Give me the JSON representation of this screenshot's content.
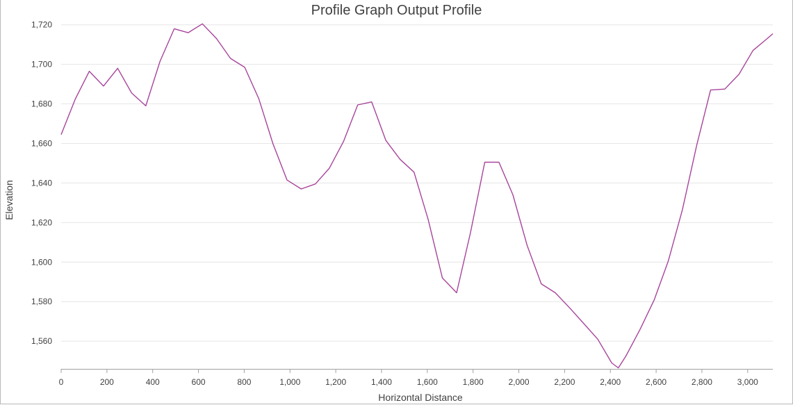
{
  "chart_data": {
    "type": "line",
    "title": "Profile Graph Output Profile",
    "xlabel": "Horizontal Distance",
    "ylabel": "Elevation",
    "xlim": [
      0,
      3110
    ],
    "ylim": [
      1546,
      1722
    ],
    "x_ticks": [
      0,
      200,
      400,
      600,
      800,
      1000,
      1200,
      1400,
      1600,
      1800,
      2000,
      2200,
      2400,
      2600,
      2800,
      3000
    ],
    "x_tick_labels": [
      "0",
      "200",
      "400",
      "600",
      "800",
      "1,000",
      "1,200",
      "1,400",
      "1,600",
      "1,800",
      "2,000",
      "2,200",
      "2,400",
      "2,600",
      "2,800",
      "3,000"
    ],
    "y_ticks": [
      1560,
      1580,
      1600,
      1620,
      1640,
      1660,
      1680,
      1700,
      1720
    ],
    "y_tick_labels": [
      "1,560",
      "1,580",
      "1,600",
      "1,620",
      "1,640",
      "1,660",
      "1,680",
      "1,700",
      "1,720"
    ],
    "grid": "horizontal",
    "line_color": "#a8449a",
    "series": [
      {
        "x": [
          0,
          62,
          123,
          185,
          247,
          308,
          370,
          432,
          494,
          555,
          617,
          679,
          740,
          802,
          864,
          925,
          987,
          1049,
          1111,
          1172,
          1234,
          1296,
          1357,
          1419,
          1481,
          1542,
          1604,
          1666,
          1728,
          1789,
          1851,
          1913,
          1974,
          2036,
          2098,
          2159,
          2221,
          2283,
          2345,
          2406,
          2435,
          2468,
          2530,
          2592,
          2653,
          2715,
          2777,
          2838,
          2900,
          2962,
          3023,
          3085,
          3110
        ],
        "y": [
          1664.5,
          1682.5,
          1696.5,
          1689,
          1698,
          1685.5,
          1679,
          1701.5,
          1718,
          1716,
          1720.5,
          1713,
          1703,
          1698.5,
          1682.5,
          1660,
          1641.5,
          1637,
          1639.5,
          1647.5,
          1661,
          1679.5,
          1681,
          1661.5,
          1652,
          1645.5,
          1621.5,
          1592,
          1584.5,
          1615,
          1650.5,
          1650.5,
          1634,
          1608.5,
          1589,
          1584.5,
          1577,
          1569,
          1561,
          1549,
          1546.5,
          1552.5,
          1566,
          1581,
          1600.5,
          1626.5,
          1659,
          1687,
          1687.5,
          1695,
          1707,
          1713,
          1715.5
        ]
      }
    ]
  }
}
